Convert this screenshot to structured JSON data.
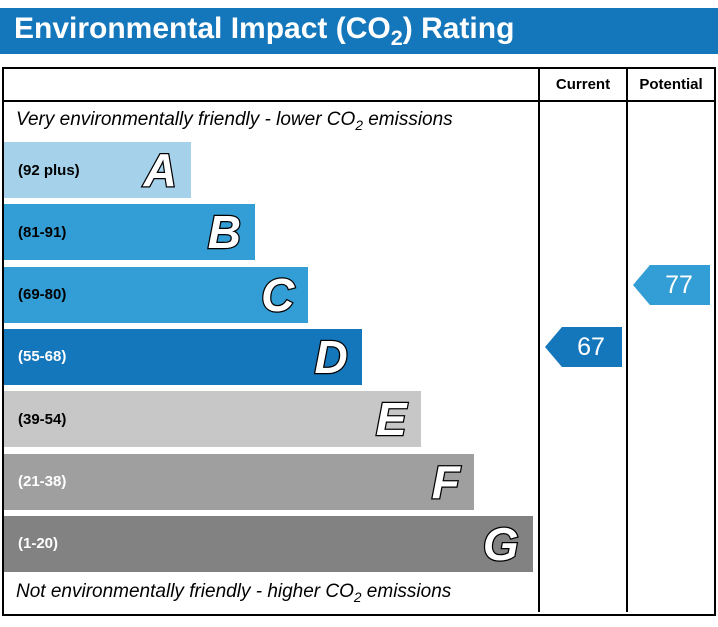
{
  "title": {
    "prefix": "Environmental Impact (CO",
    "sub": "2",
    "suffix": ") Rating"
  },
  "columns": {
    "current": "Current",
    "potential": "Potential"
  },
  "notes": {
    "top": {
      "prefix": "Very environmentally friendly - lower CO",
      "sub": "2",
      "suffix": " emissions"
    },
    "bottom": {
      "prefix": "Not environmentally friendly - higher CO",
      "sub": "2",
      "suffix": " emissions"
    }
  },
  "theme": {
    "title_bg": "#1577bb",
    "title_fg": "#ffffff",
    "border": "#000000"
  },
  "chart_data": {
    "type": "bar",
    "title": "Environmental Impact (CO2) Rating",
    "orientation": "horizontal",
    "bands": [
      {
        "letter": "A",
        "range": "(92 plus)",
        "color": "#a5d2ea",
        "width_pct": 35,
        "label_color": "#000000"
      },
      {
        "letter": "B",
        "range": "(81-91)",
        "color": "#339ed5",
        "width_pct": 47,
        "label_color": "#000000"
      },
      {
        "letter": "C",
        "range": "(69-80)",
        "color": "#339ed5",
        "width_pct": 57,
        "label_color": "#000000"
      },
      {
        "letter": "D",
        "range": "(55-68)",
        "color": "#1577bb",
        "width_pct": 67,
        "label_color": "#ffffff"
      },
      {
        "letter": "E",
        "range": "(39-54)",
        "color": "#c7c7c7",
        "width_pct": 78,
        "label_color": "#000000"
      },
      {
        "letter": "F",
        "range": "(21-38)",
        "color": "#9f9f9f",
        "width_pct": 88,
        "label_color": "#ffffff"
      },
      {
        "letter": "G",
        "range": "(1-20)",
        "color": "#828282",
        "width_pct": 99,
        "label_color": "#ffffff"
      }
    ],
    "current": {
      "label": "Current",
      "value": "67",
      "band": "D",
      "color": "#1577bb"
    },
    "potential": {
      "label": "Potential",
      "value": "77",
      "band": "C",
      "color": "#339ed5"
    }
  }
}
